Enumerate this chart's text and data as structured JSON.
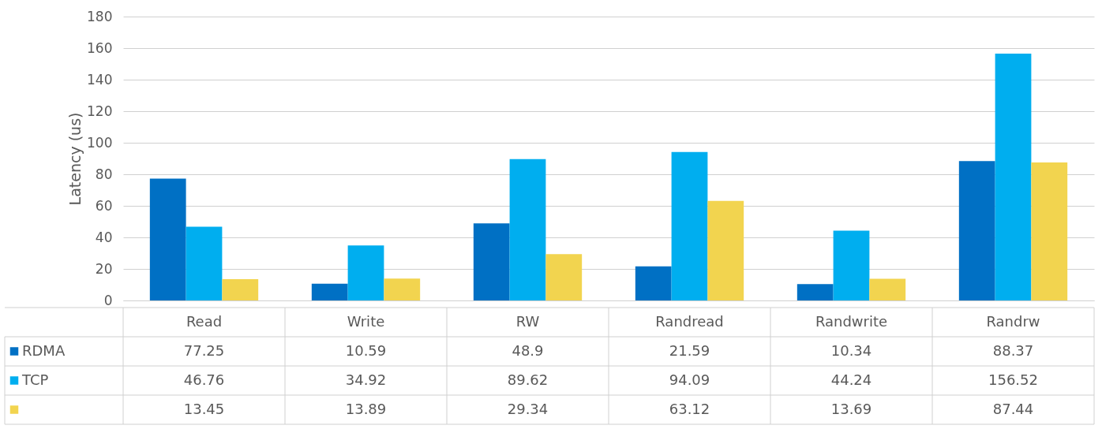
{
  "chart_data": {
    "type": "bar",
    "ylabel": "Latency (us)",
    "categories": [
      "Read",
      "Write",
      "RW",
      "Randread",
      "Randwrite",
      "Randrw"
    ],
    "series": [
      {
        "name": "RDMA",
        "color": "#0070c4",
        "values": [
          77.25,
          10.59,
          48.9,
          21.59,
          10.34,
          88.37
        ]
      },
      {
        "name": "TCP",
        "color": "#00aeef",
        "values": [
          46.76,
          34.92,
          89.62,
          94.09,
          44.24,
          156.52
        ]
      },
      {
        "color": "#f2d44f",
        "values": [
          13.45,
          13.89,
          29.34,
          63.12,
          13.69,
          87.44
        ]
      }
    ],
    "ylim": [
      0,
      180
    ],
    "yticks": [
      0,
      20,
      40,
      60,
      80,
      100,
      120,
      140,
      160,
      180
    ],
    "grid": "y",
    "legend": "bottom",
    "data_labels": true
  }
}
